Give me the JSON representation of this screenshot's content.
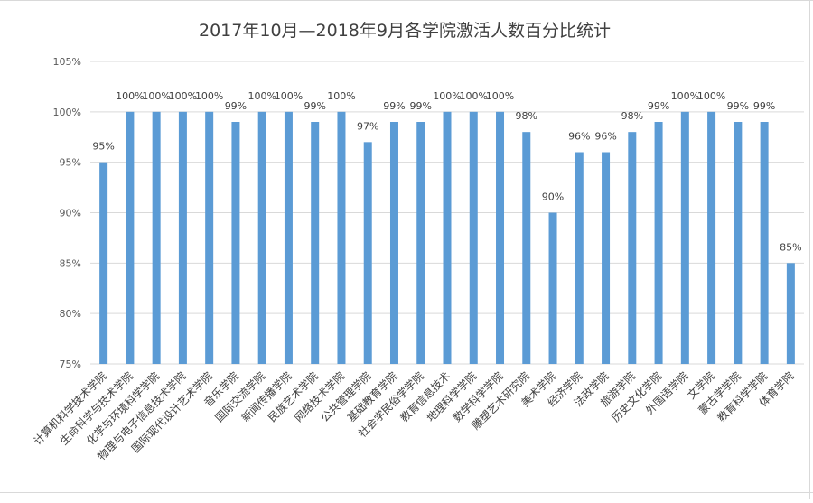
{
  "chart_data": {
    "type": "bar",
    "title": "2017年10月—2018年9月各学院激活人数百分比统计",
    "xlabel": "",
    "ylabel": "",
    "ylim": [
      75,
      105
    ],
    "yticks": [
      "75%",
      "80%",
      "85%",
      "90%",
      "95%",
      "100%",
      "105%"
    ],
    "ytick_values": [
      75,
      80,
      85,
      90,
      95,
      100,
      105
    ],
    "grid": true,
    "legend": "none",
    "bar_color": "#5b9bd5",
    "categories": [
      "计算机科学技术学院",
      "生命科学与技术学院",
      "化学与环境科学学院",
      "物理与电子信息技术学院",
      "国际现代设计艺术学院",
      "音乐学院",
      "国际交流学院",
      "新闻传播学院",
      "民族艺术学院",
      "网络技术学院",
      "公共管理学院",
      "基础教育学院",
      "社会学民俗学学院",
      "教育信息技术",
      "地理科学学院",
      "数学科学学院",
      "雕塑艺术研究院",
      "美术学院",
      "经济学院",
      "法政学院",
      "旅游学院",
      "历史文化学院",
      "外国语学院",
      "文学院",
      "蒙古学学院",
      "教育科学学院",
      "体育学院"
    ],
    "values": [
      95,
      100,
      100,
      100,
      100,
      99,
      100,
      100,
      99,
      100,
      97,
      99,
      99,
      100,
      100,
      100,
      98,
      90,
      96,
      96,
      98,
      99,
      100,
      100,
      99,
      99,
      85
    ],
    "data_labels": [
      "95%",
      "100%",
      "100%",
      "100%",
      "100%",
      "99%",
      "100%",
      "100%",
      "99%",
      "100%",
      "97%",
      "99%",
      "99%",
      "100%",
      "100%",
      "100%",
      "98%",
      "90%",
      "96%",
      "96%",
      "98%",
      "99%",
      "100%",
      "100%",
      "99%",
      "99%",
      "85%"
    ]
  }
}
